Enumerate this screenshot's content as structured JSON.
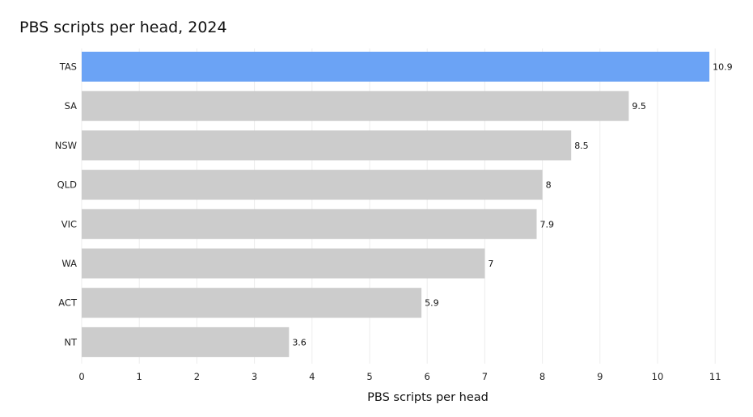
{
  "chart_data": {
    "type": "bar",
    "orientation": "horizontal",
    "title": "PBS scripts per head, 2024",
    "xlabel": "PBS scripts per head",
    "ylabel": "",
    "categories": [
      "TAS",
      "SA",
      "NSW",
      "QLD",
      "VIC",
      "WA",
      "ACT",
      "NT"
    ],
    "values": [
      10.9,
      9.5,
      8.5,
      8,
      7.9,
      7,
      5.9,
      3.6
    ],
    "data_labels": [
      "10.9",
      "9.5",
      "8.5",
      "8",
      "7.9",
      "7",
      "5.9",
      "3.6"
    ],
    "xlim": [
      0,
      11.6
    ],
    "xticks": [
      0,
      1,
      2,
      3,
      4,
      5,
      6,
      7,
      8,
      9,
      10,
      11
    ],
    "grid": true,
    "legend": "none",
    "highlight_category": "TAS",
    "colors": {
      "highlight": "#6ba3f5",
      "default": "#cccccc",
      "grid": "#ececec"
    }
  }
}
